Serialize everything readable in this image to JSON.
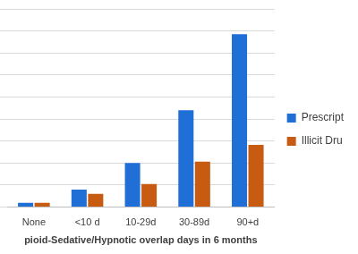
{
  "chart_data": {
    "type": "bar",
    "x_label": "pioid-Sedative/Hypnotic overlap days in 6 months",
    "categories": [
      "None",
      "<10 d",
      "10-29d",
      "30-89d",
      "90+d"
    ],
    "series": [
      {
        "name": "Prescript",
        "color": "#1f6fd6",
        "values": [
          0.2,
          0.8,
          2.0,
          4.4,
          7.85
        ]
      },
      {
        "name": "Illicit Dru",
        "color": "#c75b12",
        "values": [
          0.2,
          0.6,
          1.05,
          2.07,
          2.83
        ]
      }
    ],
    "ylim": [
      0,
      9
    ],
    "yticks": [
      0,
      1,
      2,
      3,
      4,
      5,
      6,
      7,
      8,
      9
    ],
    "grid": true,
    "legend": "right",
    "tick_labels": "x"
  }
}
